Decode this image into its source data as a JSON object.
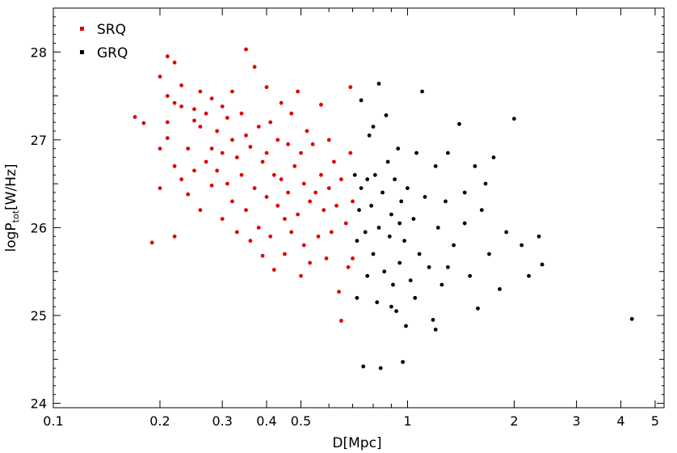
{
  "chart_data": {
    "type": "scatter",
    "title": "",
    "xlabel": "D[Mpc]",
    "ylabel_main": "logP",
    "ylabel_sub": "tot",
    "ylabel_unit": "[W/Hz]",
    "x_scale": "log",
    "xlim": [
      0.1,
      5.3
    ],
    "ylim": [
      23.95,
      28.5
    ],
    "x_ticks": [
      0.1,
      0.2,
      0.3,
      0.4,
      0.5,
      1,
      2,
      3,
      4,
      5
    ],
    "x_tick_labels": [
      "0.1",
      "0.2",
      "0.3",
      "0.4",
      "0.5",
      "1",
      "2",
      "3",
      "4",
      "5"
    ],
    "y_ticks": [
      24,
      25,
      26,
      27,
      28
    ],
    "y_tick_labels": [
      "24",
      "25",
      "26",
      "27",
      "28"
    ],
    "grid": false,
    "legend_position": "top-left",
    "series": [
      {
        "name": "SRQ",
        "color": "#e00000",
        "points": [
          [
            0.17,
            27.26
          ],
          [
            0.18,
            27.19
          ],
          [
            0.19,
            25.83
          ],
          [
            0.2,
            27.72
          ],
          [
            0.2,
            26.9
          ],
          [
            0.2,
            26.45
          ],
          [
            0.21,
            27.95
          ],
          [
            0.21,
            27.5
          ],
          [
            0.21,
            27.2
          ],
          [
            0.21,
            27.02
          ],
          [
            0.22,
            27.88
          ],
          [
            0.22,
            27.42
          ],
          [
            0.22,
            26.7
          ],
          [
            0.22,
            25.9
          ],
          [
            0.23,
            27.62
          ],
          [
            0.23,
            27.38
          ],
          [
            0.23,
            26.55
          ],
          [
            0.24,
            26.9
          ],
          [
            0.24,
            26.38
          ],
          [
            0.25,
            27.35
          ],
          [
            0.25,
            27.22
          ],
          [
            0.25,
            26.65
          ],
          [
            0.26,
            27.55
          ],
          [
            0.26,
            27.15
          ],
          [
            0.26,
            26.2
          ],
          [
            0.27,
            27.3
          ],
          [
            0.27,
            26.75
          ],
          [
            0.28,
            27.47
          ],
          [
            0.28,
            26.9
          ],
          [
            0.28,
            26.48
          ],
          [
            0.29,
            27.1
          ],
          [
            0.29,
            26.65
          ],
          [
            0.3,
            27.38
          ],
          [
            0.3,
            26.85
          ],
          [
            0.3,
            26.1
          ],
          [
            0.31,
            27.25
          ],
          [
            0.31,
            26.5
          ],
          [
            0.32,
            27.55
          ],
          [
            0.32,
            27.0
          ],
          [
            0.32,
            26.3
          ],
          [
            0.33,
            26.8
          ],
          [
            0.33,
            25.95
          ],
          [
            0.34,
            27.3
          ],
          [
            0.34,
            26.6
          ],
          [
            0.35,
            28.03
          ],
          [
            0.35,
            27.05
          ],
          [
            0.35,
            26.2
          ],
          [
            0.36,
            26.92
          ],
          [
            0.36,
            25.85
          ],
          [
            0.37,
            27.83
          ],
          [
            0.37,
            26.45
          ],
          [
            0.38,
            27.15
          ],
          [
            0.38,
            26.0
          ],
          [
            0.39,
            26.75
          ],
          [
            0.39,
            25.68
          ],
          [
            0.4,
            27.6
          ],
          [
            0.4,
            26.85
          ],
          [
            0.4,
            26.35
          ],
          [
            0.41,
            27.2
          ],
          [
            0.41,
            25.9
          ],
          [
            0.42,
            26.6
          ],
          [
            0.42,
            25.52
          ],
          [
            0.43,
            27.0
          ],
          [
            0.43,
            26.25
          ],
          [
            0.44,
            27.42
          ],
          [
            0.44,
            26.55
          ],
          [
            0.45,
            26.1
          ],
          [
            0.45,
            25.7
          ],
          [
            0.46,
            26.95
          ],
          [
            0.46,
            26.4
          ],
          [
            0.47,
            27.3
          ],
          [
            0.47,
            25.95
          ],
          [
            0.48,
            26.7
          ],
          [
            0.49,
            27.55
          ],
          [
            0.49,
            26.15
          ],
          [
            0.5,
            26.85
          ],
          [
            0.5,
            25.45
          ],
          [
            0.51,
            26.5
          ],
          [
            0.51,
            25.8
          ],
          [
            0.52,
            27.1
          ],
          [
            0.53,
            26.3
          ],
          [
            0.53,
            25.6
          ],
          [
            0.54,
            26.95
          ],
          [
            0.55,
            26.4
          ],
          [
            0.56,
            25.9
          ],
          [
            0.57,
            27.4
          ],
          [
            0.57,
            26.6
          ],
          [
            0.58,
            26.2
          ],
          [
            0.59,
            25.65
          ],
          [
            0.6,
            27.0
          ],
          [
            0.6,
            26.45
          ],
          [
            0.61,
            25.95
          ],
          [
            0.62,
            26.75
          ],
          [
            0.63,
            26.25
          ],
          [
            0.64,
            25.27
          ],
          [
            0.65,
            26.55
          ],
          [
            0.65,
            24.94
          ],
          [
            0.67,
            26.05
          ],
          [
            0.68,
            25.55
          ],
          [
            0.69,
            26.85
          ],
          [
            0.69,
            27.6
          ],
          [
            0.7,
            26.3
          ],
          [
            0.7,
            25.65
          ]
        ]
      },
      {
        "name": "GRQ",
        "color": "#000000",
        "points": [
          [
            0.71,
            26.6
          ],
          [
            0.72,
            25.85
          ],
          [
            0.72,
            25.2
          ],
          [
            0.73,
            26.2
          ],
          [
            0.74,
            27.45
          ],
          [
            0.74,
            26.45
          ],
          [
            0.75,
            24.42
          ],
          [
            0.76,
            25.95
          ],
          [
            0.77,
            26.55
          ],
          [
            0.77,
            25.45
          ],
          [
            0.78,
            27.05
          ],
          [
            0.79,
            26.25
          ],
          [
            0.8,
            25.7
          ],
          [
            0.8,
            27.15
          ],
          [
            0.81,
            26.6
          ],
          [
            0.82,
            25.15
          ],
          [
            0.83,
            26.0
          ],
          [
            0.83,
            27.64
          ],
          [
            0.84,
            24.4
          ],
          [
            0.85,
            26.4
          ],
          [
            0.86,
            25.5
          ],
          [
            0.87,
            27.28
          ],
          [
            0.88,
            26.75
          ],
          [
            0.89,
            25.9
          ],
          [
            0.9,
            26.15
          ],
          [
            0.91,
            25.35
          ],
          [
            0.92,
            26.55
          ],
          [
            0.93,
            25.05
          ],
          [
            0.94,
            26.9
          ],
          [
            0.95,
            25.6
          ],
          [
            0.96,
            26.3
          ],
          [
            0.97,
            24.47
          ],
          [
            0.98,
            25.85
          ],
          [
            0.99,
            24.88
          ],
          [
            1.0,
            26.45
          ],
          [
            1.02,
            25.4
          ],
          [
            1.04,
            26.1
          ],
          [
            1.06,
            26.85
          ],
          [
            1.08,
            25.7
          ],
          [
            1.1,
            27.55
          ],
          [
            1.12,
            26.35
          ],
          [
            1.15,
            25.55
          ],
          [
            1.18,
            24.95
          ],
          [
            1.2,
            26.7
          ],
          [
            1.22,
            26.0
          ],
          [
            1.25,
            25.35
          ],
          [
            1.28,
            26.3
          ],
          [
            1.3,
            26.85
          ],
          [
            1.35,
            25.8
          ],
          [
            1.4,
            27.18
          ],
          [
            1.45,
            26.05
          ],
          [
            1.5,
            25.45
          ],
          [
            1.55,
            26.7
          ],
          [
            1.58,
            25.08
          ],
          [
            1.62,
            26.2
          ],
          [
            1.66,
            26.5
          ],
          [
            1.7,
            25.7
          ],
          [
            1.75,
            26.8
          ],
          [
            1.82,
            25.3
          ],
          [
            1.9,
            25.95
          ],
          [
            2.0,
            27.24
          ],
          [
            2.1,
            25.8
          ],
          [
            2.2,
            25.45
          ],
          [
            2.35,
            25.9
          ],
          [
            2.4,
            25.58
          ],
          [
            4.3,
            24.96
          ],
          [
            1.2,
            24.84
          ],
          [
            1.05,
            25.2
          ],
          [
            0.9,
            25.1
          ],
          [
            1.3,
            25.55
          ],
          [
            1.45,
            26.4
          ],
          [
            0.95,
            26.05
          ]
        ]
      }
    ]
  }
}
